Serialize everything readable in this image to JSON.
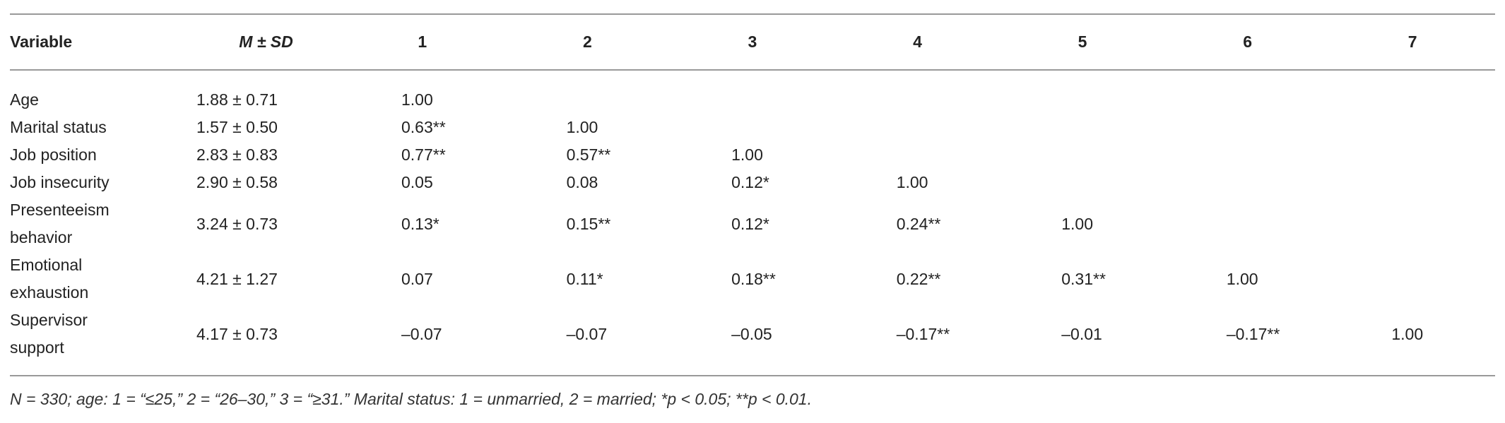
{
  "table": {
    "columns": [
      "Variable",
      "M ± SD",
      "1",
      "2",
      "3",
      "4",
      "5",
      "6",
      "7"
    ],
    "rows": [
      [
        "Age",
        "1.88 ± 0.71",
        "1.00"
      ],
      [
        "Marital status",
        "1.57 ± 0.50",
        "0.63**",
        "1.00"
      ],
      [
        "Job position",
        "2.83 ± 0.83",
        "0.77**",
        "0.57**",
        "1.00"
      ],
      [
        "Job insecurity",
        "2.90 ± 0.58",
        "0.05",
        "0.08",
        "0.12*",
        "1.00"
      ],
      [
        "Presenteeism behavior",
        "3.24 ± 0.73",
        "0.13*",
        "0.15**",
        "0.12*",
        "0.24**",
        "1.00"
      ],
      [
        "Emotional exhaustion",
        "4.21 ± 1.27",
        "0.07",
        "0.11*",
        "0.18**",
        "0.22**",
        "0.31**",
        "1.00"
      ],
      [
        "Supervisor support",
        "4.17 ± 0.73",
        "–0.07",
        "–0.07",
        "–0.05",
        "–0.17**",
        "–0.01",
        "–0.17**",
        "1.00"
      ]
    ],
    "footnote": "N = 330; age: 1 = “≤25,” 2 = “26–30,” 3 = “≥31.” Marital status: 1 = unmarried, 2 = married; *p < 0.05; **p < 0.01."
  }
}
